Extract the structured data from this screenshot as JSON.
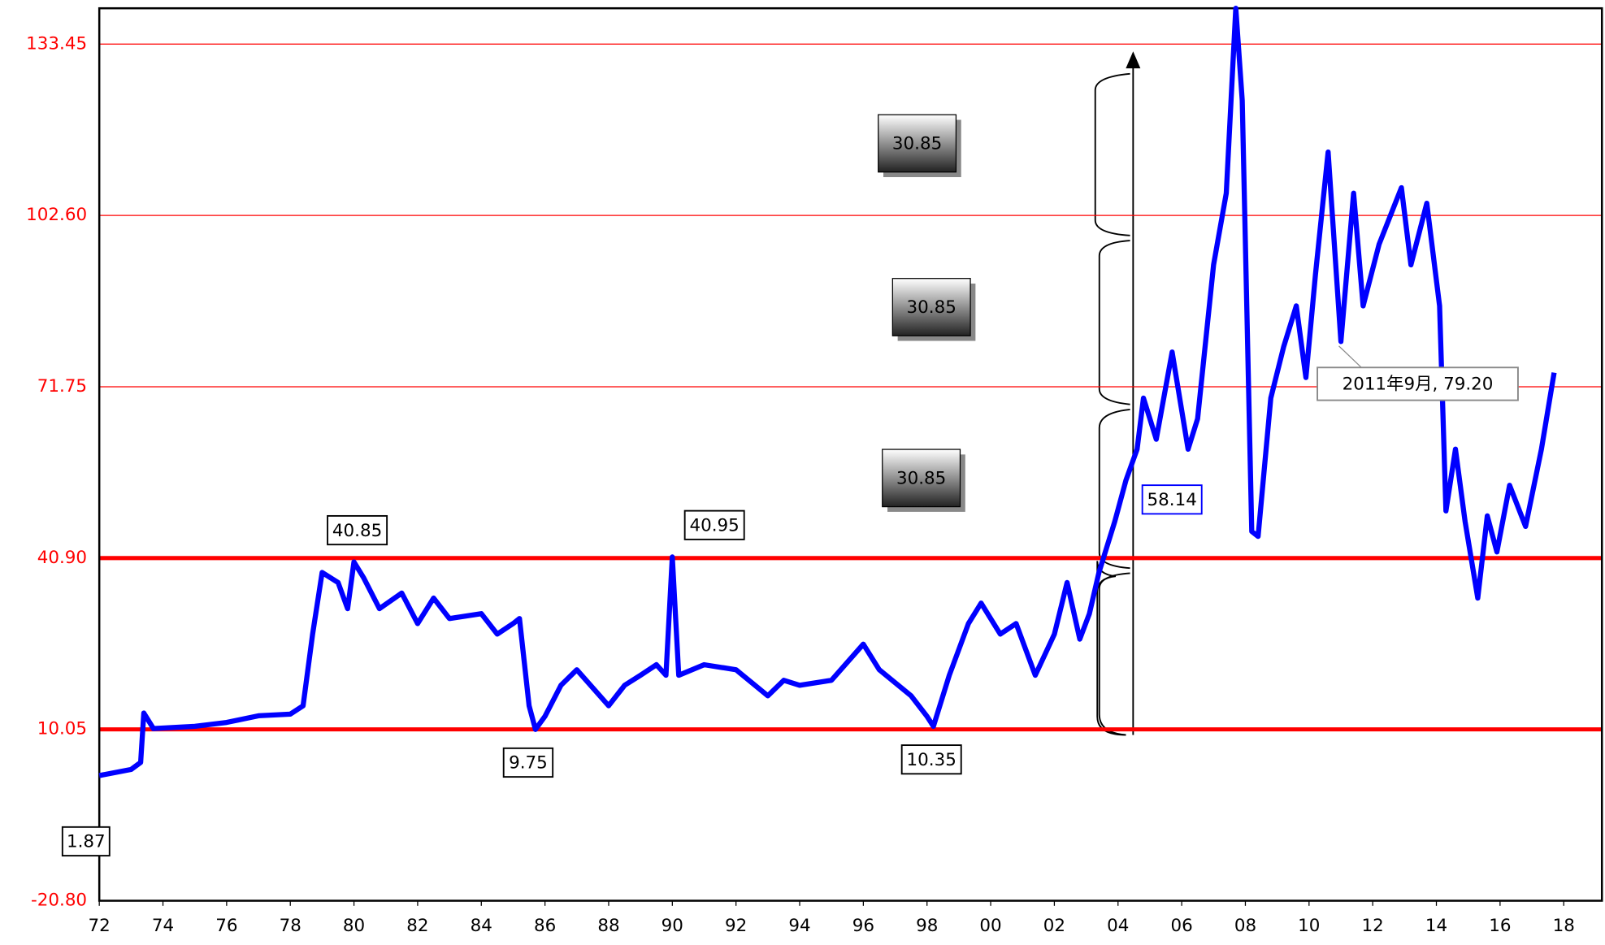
{
  "chart_data": {
    "type": "line",
    "series": [
      {
        "color": "#0000ff",
        "x": [
          1972.0,
          1973.0,
          1973.3,
          1973.4,
          1973.7,
          1975.0,
          1976.0,
          1977.0,
          1978.0,
          1978.4,
          1978.7,
          1979.0,
          1979.5,
          1979.8,
          1980.0,
          1980.3,
          1980.8,
          1981.5,
          1982.0,
          1982.5,
          1983.0,
          1984.0,
          1984.5,
          1985.0,
          1985.2,
          1985.5,
          1985.7,
          1986.0,
          1986.5,
          1987.0,
          1988.0,
          1988.5,
          1989.0,
          1989.5,
          1989.8,
          1990.0,
          1990.2,
          1991.0,
          1992.0,
          1993.0,
          1993.5,
          1994.0,
          1995.0,
          1996.0,
          1996.5,
          1997.5,
          1998.0,
          1998.2,
          1998.7,
          1999.3,
          1999.7,
          2000.3,
          2000.8,
          2001.4,
          2002.0,
          2002.4,
          2002.8,
          2003.1,
          2003.4,
          2003.9,
          2004.25,
          2004.6,
          2004.8,
          2005.2,
          2005.7,
          2006.2,
          2006.5,
          2007.0,
          2007.4,
          2007.7,
          2007.9,
          2008.2,
          2008.4,
          2008.8,
          2009.2,
          2009.6,
          2009.9,
          2010.2,
          2010.6,
          2011.0,
          2011.4,
          2011.7,
          2012.2,
          2012.9,
          2013.2,
          2013.7,
          2014.1,
          2014.3,
          2014.6,
          2014.9,
          2015.3,
          2015.6,
          2015.9,
          2016.3,
          2016.8,
          2017.3,
          2017.7
        ],
        "values": [
          1.74,
          2.85,
          4.1,
          13,
          10.2,
          10.6,
          11.3,
          12.5,
          12.8,
          14.3,
          27.2,
          38.3,
          36.5,
          31.8,
          40.2,
          37.4,
          31.8,
          34.6,
          29.1,
          33.7,
          30,
          30.9,
          27.2,
          29.1,
          30,
          14.3,
          10.05,
          12.4,
          18,
          20.8,
          14.3,
          18,
          19.8,
          21.7,
          19.8,
          41.1,
          19.8,
          21.7,
          20.8,
          16.1,
          18.9,
          18,
          18.9,
          25.4,
          20.8,
          16.1,
          12.4,
          10.6,
          19.8,
          29.1,
          32.8,
          27.2,
          29.1,
          19.8,
          27.2,
          36.5,
          26.3,
          30.9,
          38.3,
          47.5,
          54.9,
          60.5,
          69.7,
          62.3,
          78.0,
          60.5,
          66,
          93.7,
          106.6,
          139.9,
          123.3,
          45.7,
          44.8,
          69.7,
          78.9,
          86.3,
          73.4,
          91.9,
          114,
          79.9,
          106.6,
          86.3,
          97.4,
          107.6,
          93.7,
          104.8,
          86.3,
          49.4,
          60.5,
          47.5,
          33.7,
          48.5,
          42.0,
          54,
          46.6,
          60.5,
          74.3
        ]
      }
    ],
    "xlim": [
      1972,
      2019.2
    ],
    "xticks": [
      {
        "value": 1972,
        "label": "72"
      },
      {
        "value": 1974,
        "label": "74"
      },
      {
        "value": 1976,
        "label": "76"
      },
      {
        "value": 1978,
        "label": "78"
      },
      {
        "value": 1980,
        "label": "80"
      },
      {
        "value": 1982,
        "label": "82"
      },
      {
        "value": 1984,
        "label": "84"
      },
      {
        "value": 1986,
        "label": "86"
      },
      {
        "value": 1988,
        "label": "88"
      },
      {
        "value": 1990,
        "label": "90"
      },
      {
        "value": 1992,
        "label": "92"
      },
      {
        "value": 1994,
        "label": "94"
      },
      {
        "value": 1996,
        "label": "96"
      },
      {
        "value": 1998,
        "label": "98"
      },
      {
        "value": 2000,
        "label": "00"
      },
      {
        "value": 2002,
        "label": "02"
      },
      {
        "value": 2004,
        "label": "04"
      },
      {
        "value": 2006,
        "label": "06"
      },
      {
        "value": 2008,
        "label": "08"
      },
      {
        "value": 2010,
        "label": "10"
      },
      {
        "value": 2012,
        "label": "12"
      },
      {
        "value": 2014,
        "label": "14"
      },
      {
        "value": 2016,
        "label": "16"
      },
      {
        "value": 2018,
        "label": "18"
      }
    ],
    "ylim": [
      -20.8,
      139.9
    ],
    "yticks": [
      {
        "value": -20.8,
        "label": "-20.80"
      },
      10.05,
      {
        "value": 40.9,
        "label": "40.90"
      },
      71.75,
      {
        "value": 102.6,
        "label": "102.60"
      },
      133.45
    ],
    "grid": true,
    "grid_color": "#ff0000",
    "annotations": [
      "1.87",
      "40.85",
      "9.75",
      "40.95",
      "10.35",
      "58.14",
      "2011年9月, 79.20",
      "30.85",
      "30.85",
      "30.85"
    ]
  }
}
